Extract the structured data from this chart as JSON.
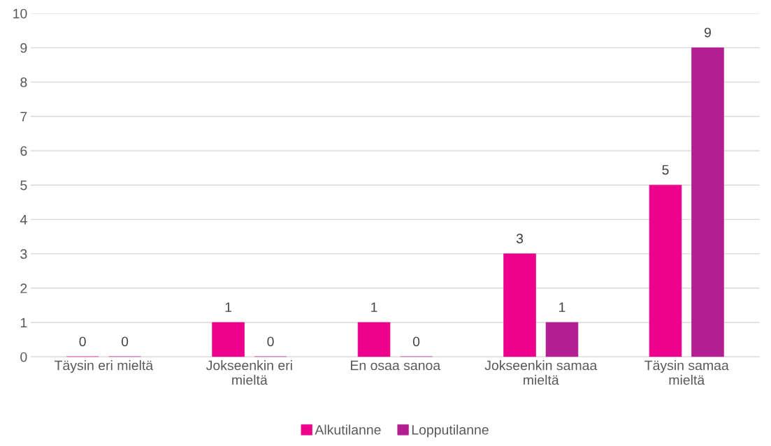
{
  "chart_data": {
    "type": "bar",
    "categories": [
      "Täysin eri mieltä",
      "Jokseenkin eri mieltä",
      "En osaa sanoa",
      "Jokseenkin samaa mieltä",
      "Täysin samaa mieltä"
    ],
    "series": [
      {
        "name": "Alkutilanne",
        "color": "#ec008c",
        "values": [
          0,
          1,
          1,
          3,
          5
        ]
      },
      {
        "name": "Lopputilanne",
        "color": "#b31e92",
        "values": [
          0,
          0,
          0,
          1,
          9
        ]
      }
    ],
    "ylim": [
      0,
      10
    ],
    "yticks": [
      0,
      1,
      2,
      3,
      4,
      5,
      6,
      7,
      8,
      9,
      10
    ],
    "grid": "y",
    "legend": "bottom",
    "data_labels": true
  }
}
